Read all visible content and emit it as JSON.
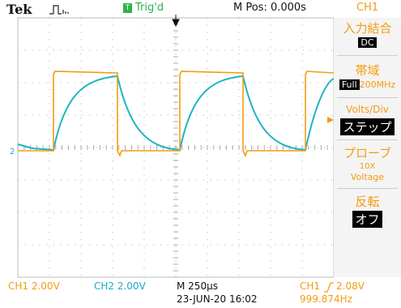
{
  "header": {
    "brand": "Tek",
    "trigger_badge": "T",
    "status": "Trig'd",
    "position": "M Pos: 0.000s",
    "channel": "CH1"
  },
  "screen": {
    "ch2_marker": "2"
  },
  "menu": [
    {
      "title": "入力結合",
      "value": "DC"
    },
    {
      "title": "帯域",
      "value": "Full",
      "detail": "200MHz"
    },
    {
      "title": "Volts/Div",
      "value": "ステップ"
    },
    {
      "title": "プローブ",
      "value": "10X",
      "detail": "Voltage"
    },
    {
      "title": "反転",
      "value": "オフ"
    }
  ],
  "footer": {
    "ch1_scale": "CH1  2.00V",
    "ch2_scale": "CH2  2.00V",
    "timebase": "M 250µs",
    "datetime": "23-JUN-20 16:02",
    "trigger_source": "CH1",
    "trigger_level": "2.08V",
    "frequency": "999.874Hz"
  }
}
